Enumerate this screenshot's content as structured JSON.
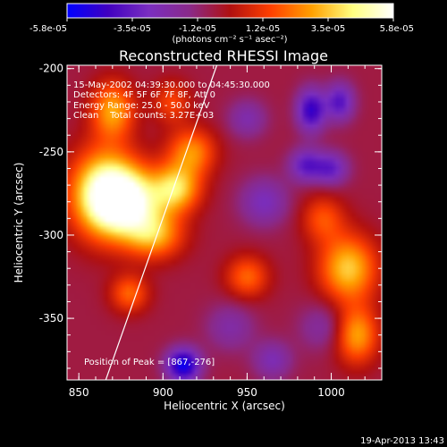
{
  "chart_data": {
    "type": "heatmap",
    "title": "Reconstructed RHESSI Image",
    "xlabel": "Heliocentric X (arcsec)",
    "ylabel": "Heliocentric Y (arcsec)",
    "xlim": [
      843,
      1030
    ],
    "ylim": [
      -387,
      -198
    ],
    "x_ticks": [
      850,
      900,
      950,
      1000
    ],
    "y_ticks": [
      -350,
      -300,
      -250,
      -200
    ],
    "colorbar": {
      "range": [
        -5.8e-05,
        5.8e-05
      ],
      "tick_labels": [
        "-5.8e-05",
        "-3.5e-05",
        "-1.2e-05",
        "1.2e-05",
        "3.5e-05",
        "5.8e-05"
      ],
      "unit_label": "(photons cm⁻² s⁻¹ asec⁻²)",
      "colormap": [
        "#0000ff",
        "#4000c0",
        "#7a2ec0",
        "#8a2a8a",
        "#b01010",
        "#ff4000",
        "#ffa000",
        "#ffff80",
        "#ffffff"
      ]
    },
    "annotations": {
      "time_range": "15-May-2002 04:39:30.000 to 04:45:30.000",
      "detectors": "Detectors: 4F 5F 6F 7F 8F, Att 0",
      "energy_range": "Energy Range: 25.0 - 50.0 keV",
      "clean": "Clean    Total counts: 3.27E+03",
      "peak": "Position of Peak = [867,-276]"
    },
    "limb_line": {
      "x": [
        866,
        932
      ],
      "y": [
        -387,
        -198
      ]
    },
    "sources": [
      {
        "x": 865,
        "y": -275,
        "value": 5.8e-05,
        "sx": 14,
        "sy": 18
      },
      {
        "x": 880,
        "y": -280,
        "value": 5e-05,
        "sx": 14,
        "sy": 14
      },
      {
        "x": 908,
        "y": -272,
        "value": 4.2e-05,
        "sx": 10,
        "sy": 10
      },
      {
        "x": 917,
        "y": -250,
        "value": 3.2e-05,
        "sx": 10,
        "sy": 10
      },
      {
        "x": 895,
        "y": -300,
        "value": 3.4e-05,
        "sx": 12,
        "sy": 10
      },
      {
        "x": 870,
        "y": -225,
        "value": 3.6e-05,
        "sx": 9,
        "sy": 12
      },
      {
        "x": 880,
        "y": -335,
        "value": 2.6e-05,
        "sx": 8,
        "sy": 8
      },
      {
        "x": 950,
        "y": -325,
        "value": 2.6e-05,
        "sx": 9,
        "sy": 9
      },
      {
        "x": 905,
        "y": -220,
        "value": 2e-05,
        "sx": 8,
        "sy": 9
      },
      {
        "x": 1010,
        "y": -320,
        "value": 4.2e-05,
        "sx": 12,
        "sy": 14
      },
      {
        "x": 1015,
        "y": -360,
        "value": 3.6e-05,
        "sx": 9,
        "sy": 12
      },
      {
        "x": 995,
        "y": -290,
        "value": 2.2e-05,
        "sx": 9,
        "sy": 10
      },
      {
        "x": 995,
        "y": -355,
        "value": -1.5e-05,
        "sx": 10,
        "sy": 10
      },
      {
        "x": 912,
        "y": -378,
        "value": -5e-05,
        "sx": 7,
        "sy": 7
      },
      {
        "x": 988,
        "y": -225,
        "value": -4e-05,
        "sx": 6,
        "sy": 9
      },
      {
        "x": 1005,
        "y": -220,
        "value": -3.2e-05,
        "sx": 6,
        "sy": 8
      },
      {
        "x": 985,
        "y": -258,
        "value": -3e-05,
        "sx": 7,
        "sy": 7
      },
      {
        "x": 1000,
        "y": -260,
        "value": -2.8e-05,
        "sx": 7,
        "sy": 7
      },
      {
        "x": 950,
        "y": -230,
        "value": -1.8e-05,
        "sx": 8,
        "sy": 8
      },
      {
        "x": 940,
        "y": -355,
        "value": -1.6e-05,
        "sx": 10,
        "sy": 10
      },
      {
        "x": 960,
        "y": -280,
        "value": -2.2e-05,
        "sx": 10,
        "sy": 10
      },
      {
        "x": 965,
        "y": -375,
        "value": -2e-05,
        "sx": 8,
        "sy": 8
      }
    ]
  },
  "footer": {
    "timestamp": "19-Apr-2013 13:43"
  }
}
